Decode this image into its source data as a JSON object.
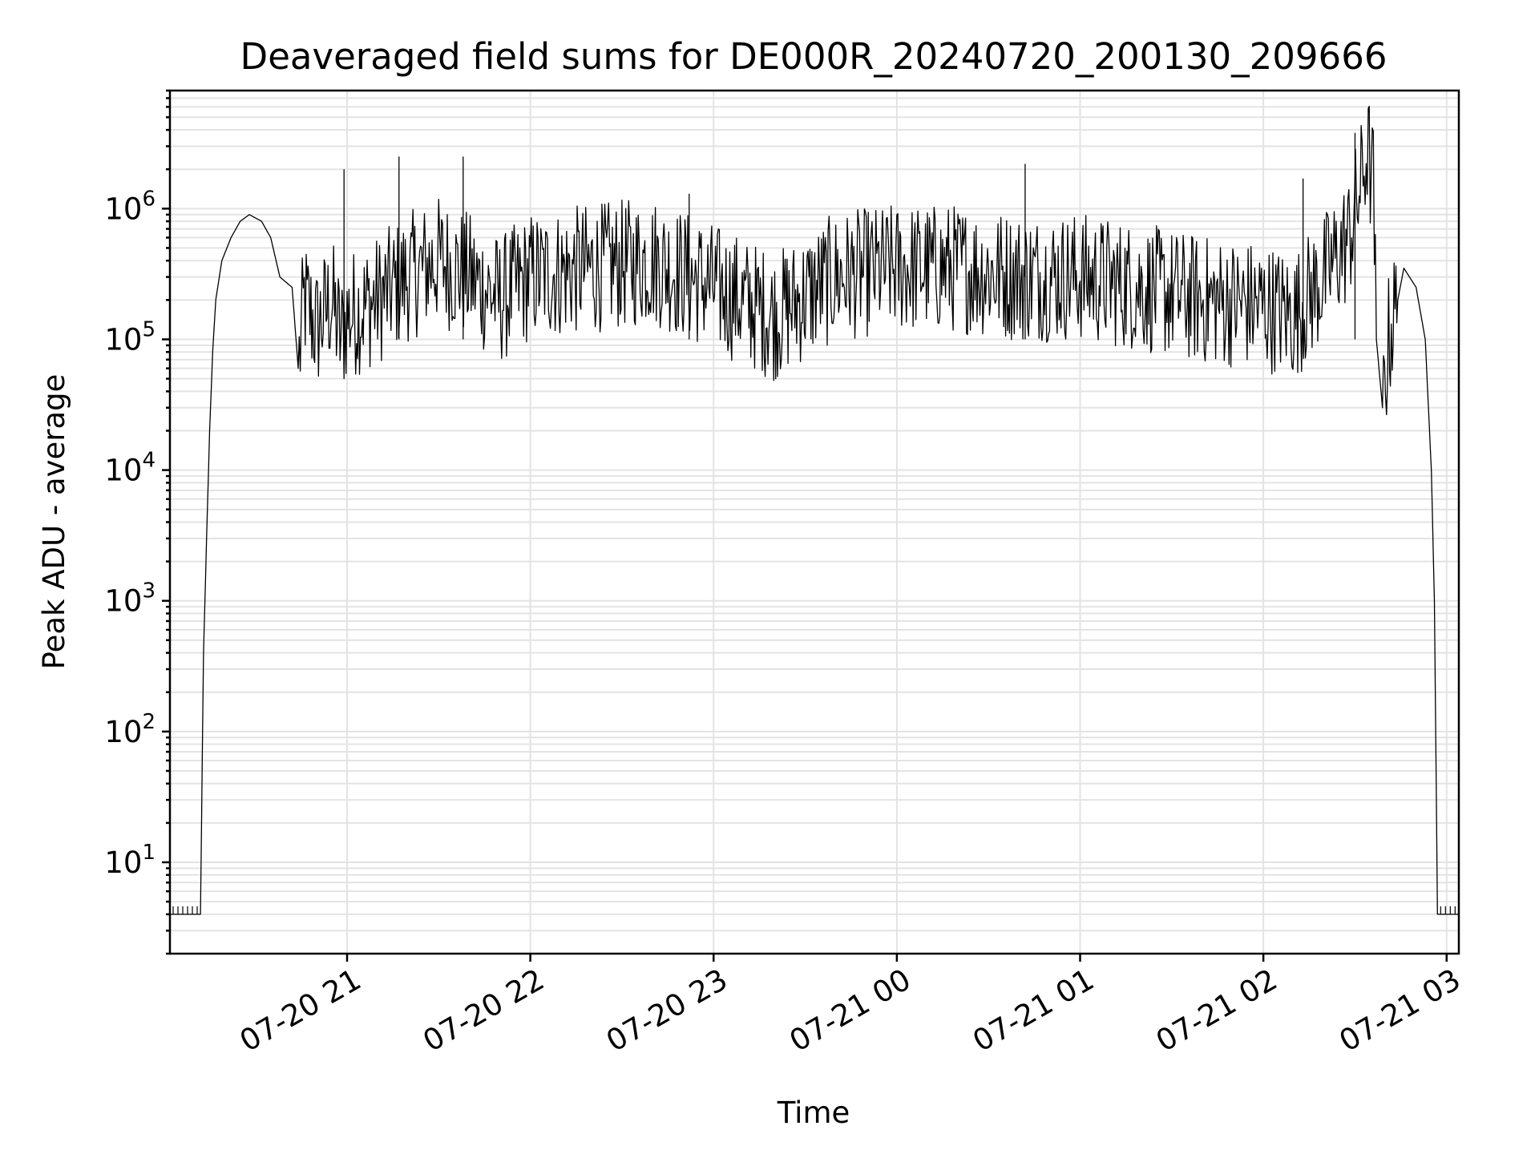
{
  "chart_data": {
    "type": "line",
    "title": "Deaveraged field sums for DE000R_20240720_200130_209666",
    "xlabel": "Time",
    "ylabel": "Peak ADU - average",
    "y_scale": "log",
    "ylim": [
      2,
      8000000
    ],
    "xlim": [
      "2024-07-20 20:02",
      "2024-07-21 03:04"
    ],
    "x_ticks": [
      {
        "value": "2024-07-20 21:00",
        "label": "07-20 21"
      },
      {
        "value": "2024-07-20 22:00",
        "label": "07-20 22"
      },
      {
        "value": "2024-07-20 23:00",
        "label": "07-20 23"
      },
      {
        "value": "2024-07-21 00:00",
        "label": "07-21 00"
      },
      {
        "value": "2024-07-21 01:00",
        "label": "07-21 01"
      },
      {
        "value": "2024-07-21 02:00",
        "label": "07-21 02"
      },
      {
        "value": "2024-07-21 03:00",
        "label": "07-21 03"
      }
    ],
    "y_ticks": [
      {
        "value": 10,
        "base": "10",
        "exp": "1"
      },
      {
        "value": 100,
        "base": "10",
        "exp": "2"
      },
      {
        "value": 1000,
        "base": "10",
        "exp": "3"
      },
      {
        "value": 10000,
        "base": "10",
        "exp": "4"
      },
      {
        "value": 100000,
        "base": "10",
        "exp": "5"
      },
      {
        "value": 1000000,
        "base": "10",
        "exp": "6"
      }
    ],
    "grid": "major and minor",
    "series": [
      {
        "color": "#000000",
        "points": [
          [
            "2024-07-20 20:02",
            4
          ],
          [
            "2024-07-20 20:12",
            4
          ],
          [
            "2024-07-20 20:13",
            400
          ],
          [
            "2024-07-20 20:14",
            3000
          ],
          [
            "2024-07-20 20:15",
            20000
          ],
          [
            "2024-07-20 20:16",
            80000
          ],
          [
            "2024-07-20 20:17",
            200000
          ],
          [
            "2024-07-20 20:19",
            400000
          ],
          [
            "2024-07-20 20:22",
            600000
          ],
          [
            "2024-07-20 20:25",
            800000
          ],
          [
            "2024-07-20 20:28",
            900000
          ],
          [
            "2024-07-20 20:32",
            800000
          ],
          [
            "2024-07-20 20:35",
            600000
          ],
          [
            "2024-07-20 20:38",
            300000
          ],
          [
            "2024-07-20 20:42",
            250000
          ],
          [
            "2024-07-20 20:44",
            60000
          ],
          [
            "2024-07-20 20:46",
            200000
          ],
          [
            "2024-07-20 20:50",
            120000
          ],
          [
            "2024-07-20 20:55",
            200000
          ],
          [
            "2024-07-20 20:58",
            100000
          ],
          [
            "2024-07-20 21:00",
            150000
          ],
          [
            "2024-07-20 21:10",
            200000
          ],
          [
            "2024-07-20 21:20",
            300000
          ],
          [
            "2024-07-20 21:30",
            400000
          ],
          [
            "2024-07-20 21:40",
            300000
          ],
          [
            "2024-07-20 21:50",
            200000
          ],
          [
            "2024-07-20 22:00",
            300000
          ],
          [
            "2024-07-20 22:20",
            350000
          ],
          [
            "2024-07-20 22:40",
            400000
          ],
          [
            "2024-07-20 23:00",
            250000
          ],
          [
            "2024-07-20 23:20",
            150000
          ],
          [
            "2024-07-20 23:40",
            300000
          ],
          [
            "2024-07-21 00:00",
            350000
          ],
          [
            "2024-07-21 00:20",
            350000
          ],
          [
            "2024-07-21 00:40",
            300000
          ],
          [
            "2024-07-21 01:00",
            300000
          ],
          [
            "2024-07-21 01:20",
            250000
          ],
          [
            "2024-07-21 01:40",
            200000
          ],
          [
            "2024-07-21 02:00",
            180000
          ],
          [
            "2024-07-21 02:10",
            150000
          ],
          [
            "2024-07-21 02:20",
            300000
          ],
          [
            "2024-07-21 02:28",
            600000
          ],
          [
            "2024-07-21 02:32",
            1500000
          ],
          [
            "2024-07-21 02:34",
            2800000
          ],
          [
            "2024-07-21 02:36",
            1500000
          ],
          [
            "2024-07-21 02:37",
            100000
          ],
          [
            "2024-07-21 02:39",
            30000
          ],
          [
            "2024-07-21 02:41",
            100000
          ],
          [
            "2024-07-21 02:44",
            200000
          ],
          [
            "2024-07-21 02:46",
            350000
          ],
          [
            "2024-07-21 02:50",
            250000
          ],
          [
            "2024-07-21 02:53",
            100000
          ],
          [
            "2024-07-21 02:55",
            10000
          ],
          [
            "2024-07-21 02:56",
            1000
          ],
          [
            "2024-07-21 02:57",
            4
          ],
          [
            "2024-07-21 03:04",
            4
          ]
        ],
        "spikes": [
          [
            "2024-07-20 20:59",
            2000000
          ],
          [
            "2024-07-20 21:17",
            2500000
          ],
          [
            "2024-07-20 21:38",
            2500000
          ],
          [
            "2024-07-21 00:42",
            2200000
          ],
          [
            "2024-07-21 02:30",
            3800000
          ],
          [
            "2024-07-21 02:13",
            1700000
          ],
          [
            "2024-07-20 22:52",
            1300000
          ]
        ]
      }
    ]
  }
}
